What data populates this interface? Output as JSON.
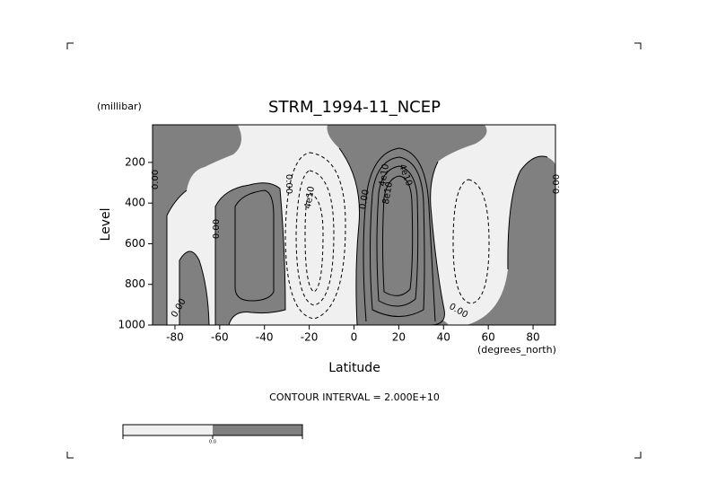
{
  "chart_data": {
    "type": "contour",
    "title": "STRM_1994-11_NCEP",
    "x_label": "Latitude",
    "x_units": "(degrees_north)",
    "y_label": "Level",
    "y_units": "(millibar)",
    "xlim": [
      -90,
      90
    ],
    "ylim": [
      1000,
      15
    ],
    "xticks": [
      -80,
      -60,
      -40,
      -20,
      0,
      20,
      40,
      60,
      80
    ],
    "yticks": [
      200,
      400,
      600,
      800,
      1000
    ],
    "contour_interval": "CONTOUR INTERVAL = 2.000E+10",
    "contour_labels": [
      "0.00",
      "0.00",
      "0.00",
      "0.00",
      "4e10",
      "0.00",
      "4e10",
      "8e10",
      "4e10",
      "0.00",
      "0.00"
    ],
    "colorbar": {
      "colors": [
        "#f0f0f0",
        "#808080"
      ],
      "label": "0.0"
    }
  }
}
